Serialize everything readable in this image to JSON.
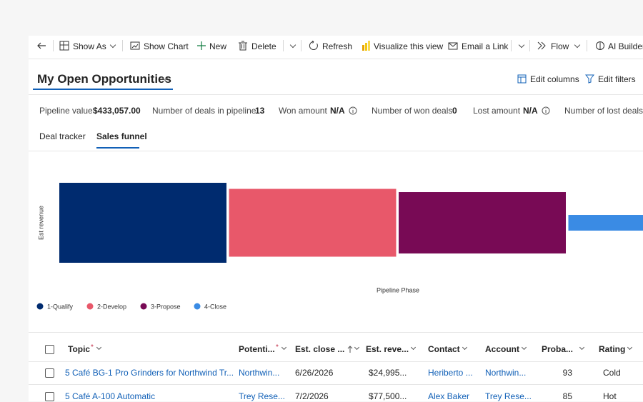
{
  "toolbar": [
    "Show As",
    "Show Chart",
    "New",
    "Delete",
    "Refresh",
    "Visualize this view",
    "Email a Link",
    "Flow",
    "AI Builder"
  ],
  "header": {
    "title": "My Open Opportunities",
    "actions": [
      "Edit columns",
      "Edit filters"
    ]
  },
  "stats": [
    {
      "label": "Pipeline value",
      "value": "$433,057.00"
    },
    {
      "label": "Number of deals in pipeline",
      "value": 13
    },
    {
      "label": "Won amount",
      "value": "N/A"
    },
    {
      "label": "Number of won deals",
      "value": 0
    },
    {
      "label": "Lost amount",
      "value": "N/A"
    },
    {
      "label": "Number of lost deals"
    }
  ],
  "tabs": [
    "Deal tracker",
    "Sales funnel"
  ],
  "chart_data": {
    "type": "funnel",
    "y_label": "Est revenue",
    "x_label": "Pipeline Phase",
    "categories": [
      "1-Qualify",
      "2-Develop",
      "3-Propose",
      "4-Close"
    ],
    "values": [
      154000,
      130600,
      118200,
      30200
    ],
    "colors": [
      "#002b6f",
      "#e8586a",
      "#780a55",
      "#3a8be4"
    ],
    "legend": "bottom-left"
  },
  "table": {
    "columns": [
      {
        "label": "Topic",
        "required": "*"
      },
      {
        "label": "Potenti...",
        "required": "*"
      },
      {
        "label": "Est. close ..."
      },
      {
        "label": "Est. reve..."
      },
      {
        "label": "Contact"
      },
      {
        "label": "Account"
      },
      {
        "label": "Proba..."
      },
      {
        "label": "Rating"
      }
    ],
    "rows": [
      [
        "5 Café BG-1 Pro Grinders for Northwind Tr...",
        "Northwin...",
        "6/26/2026",
        "$24,995...",
        "Heriberto ...",
        "Northwin...",
        93,
        "Cold"
      ],
      [
        "5 Café A-100 Automatic",
        "Trey Rese...",
        "7/2/2026",
        "$77,500...",
        "Alex Baker",
        "Trey Rese...",
        85,
        "Hot"
      ]
    ]
  }
}
